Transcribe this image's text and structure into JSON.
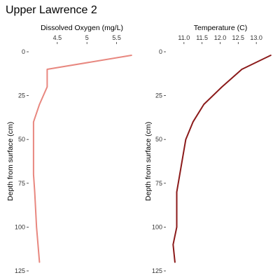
{
  "title": "Upper Lawrence 2",
  "chart_data": [
    {
      "type": "line",
      "xlabel": "Dissolved Oxygen (mg/L)",
      "ylabel": "Depth from surface (cm)",
      "x_ticks": [
        "4.5",
        "5",
        "5.5"
      ],
      "y_ticks": [
        "0",
        "25",
        "50",
        "75",
        "100",
        "125"
      ],
      "xlim": [
        4.03,
        5.8
      ],
      "ylim": [
        0,
        125
      ],
      "color": "#e8877f",
      "x": [
        5.75,
        4.33,
        4.33,
        4.2,
        4.1,
        4.1,
        4.1,
        4.12,
        4.15,
        4.2
      ],
      "y": [
        2,
        10,
        20,
        30,
        40,
        50,
        70,
        80,
        100,
        120
      ]
    },
    {
      "type": "line",
      "xlabel": "Temperature (C)",
      "ylabel": "Depth from surface (cm)",
      "x_ticks": [
        "11.0",
        "11.5",
        "12.0",
        "12.5",
        "13.0"
      ],
      "y_ticks": [
        "0",
        "25",
        "50",
        "75",
        "100",
        "125"
      ],
      "xlim": [
        10.52,
        13.5
      ],
      "ylim": [
        0,
        125
      ],
      "color": "#8b1a1a",
      "x": [
        13.4,
        12.6,
        12.05,
        11.55,
        11.25,
        11.05,
        10.8,
        10.8,
        10.7,
        10.75
      ],
      "y": [
        2,
        10,
        20,
        30,
        40,
        50,
        80,
        100,
        110,
        120
      ]
    }
  ]
}
